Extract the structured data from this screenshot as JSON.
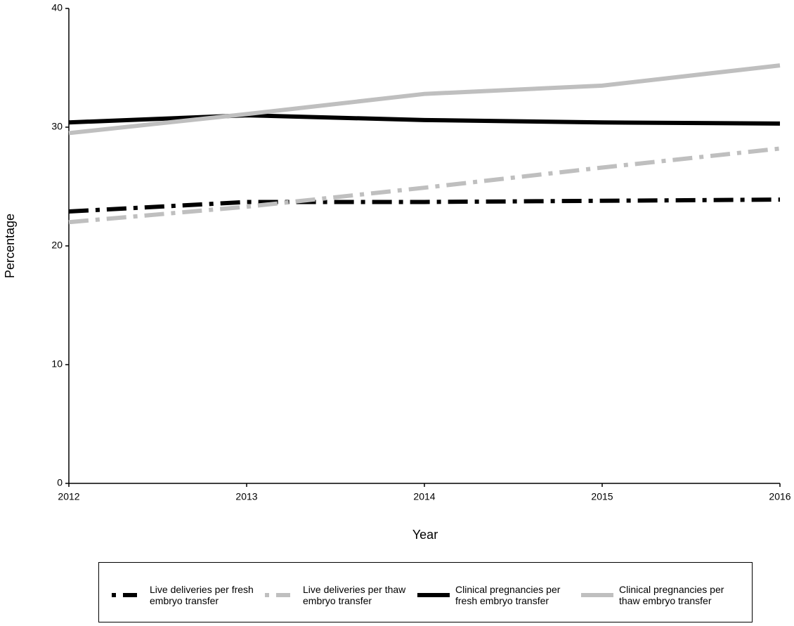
{
  "chart_data": {
    "type": "line",
    "x_label": "Year",
    "y_label": "Percentage",
    "x": [
      2012,
      2013,
      2014,
      2015,
      2016
    ],
    "xlim": [
      2012,
      2016
    ],
    "xticks": [
      2012,
      2013,
      2014,
      2015,
      2016
    ],
    "ylim": [
      0,
      40
    ],
    "yticks": [
      0,
      10,
      20,
      30,
      40
    ],
    "grid": false,
    "legend": "bottom",
    "series": [
      {
        "name": "Live deliveries per fresh embryo transfer",
        "color": "#000000",
        "dash": "dashdot",
        "values": [
          22.9,
          23.7,
          23.7,
          23.8,
          23.9
        ]
      },
      {
        "name": "Live deliveries per thaw embryo transfer",
        "color": "#bfbfbf",
        "dash": "dashdot",
        "values": [
          22.0,
          23.3,
          24.9,
          26.6,
          28.2
        ]
      },
      {
        "name": "Clinical pregnancies per fresh embryo transfer",
        "color": "#000000",
        "dash": "solid",
        "values": [
          30.4,
          31.0,
          30.6,
          30.4,
          30.3
        ]
      },
      {
        "name": "Clinical pregnancies per thaw embryo transfer",
        "color": "#bfbfbf",
        "dash": "solid",
        "values": [
          29.5,
          31.1,
          32.8,
          33.5,
          35.2
        ]
      }
    ]
  }
}
